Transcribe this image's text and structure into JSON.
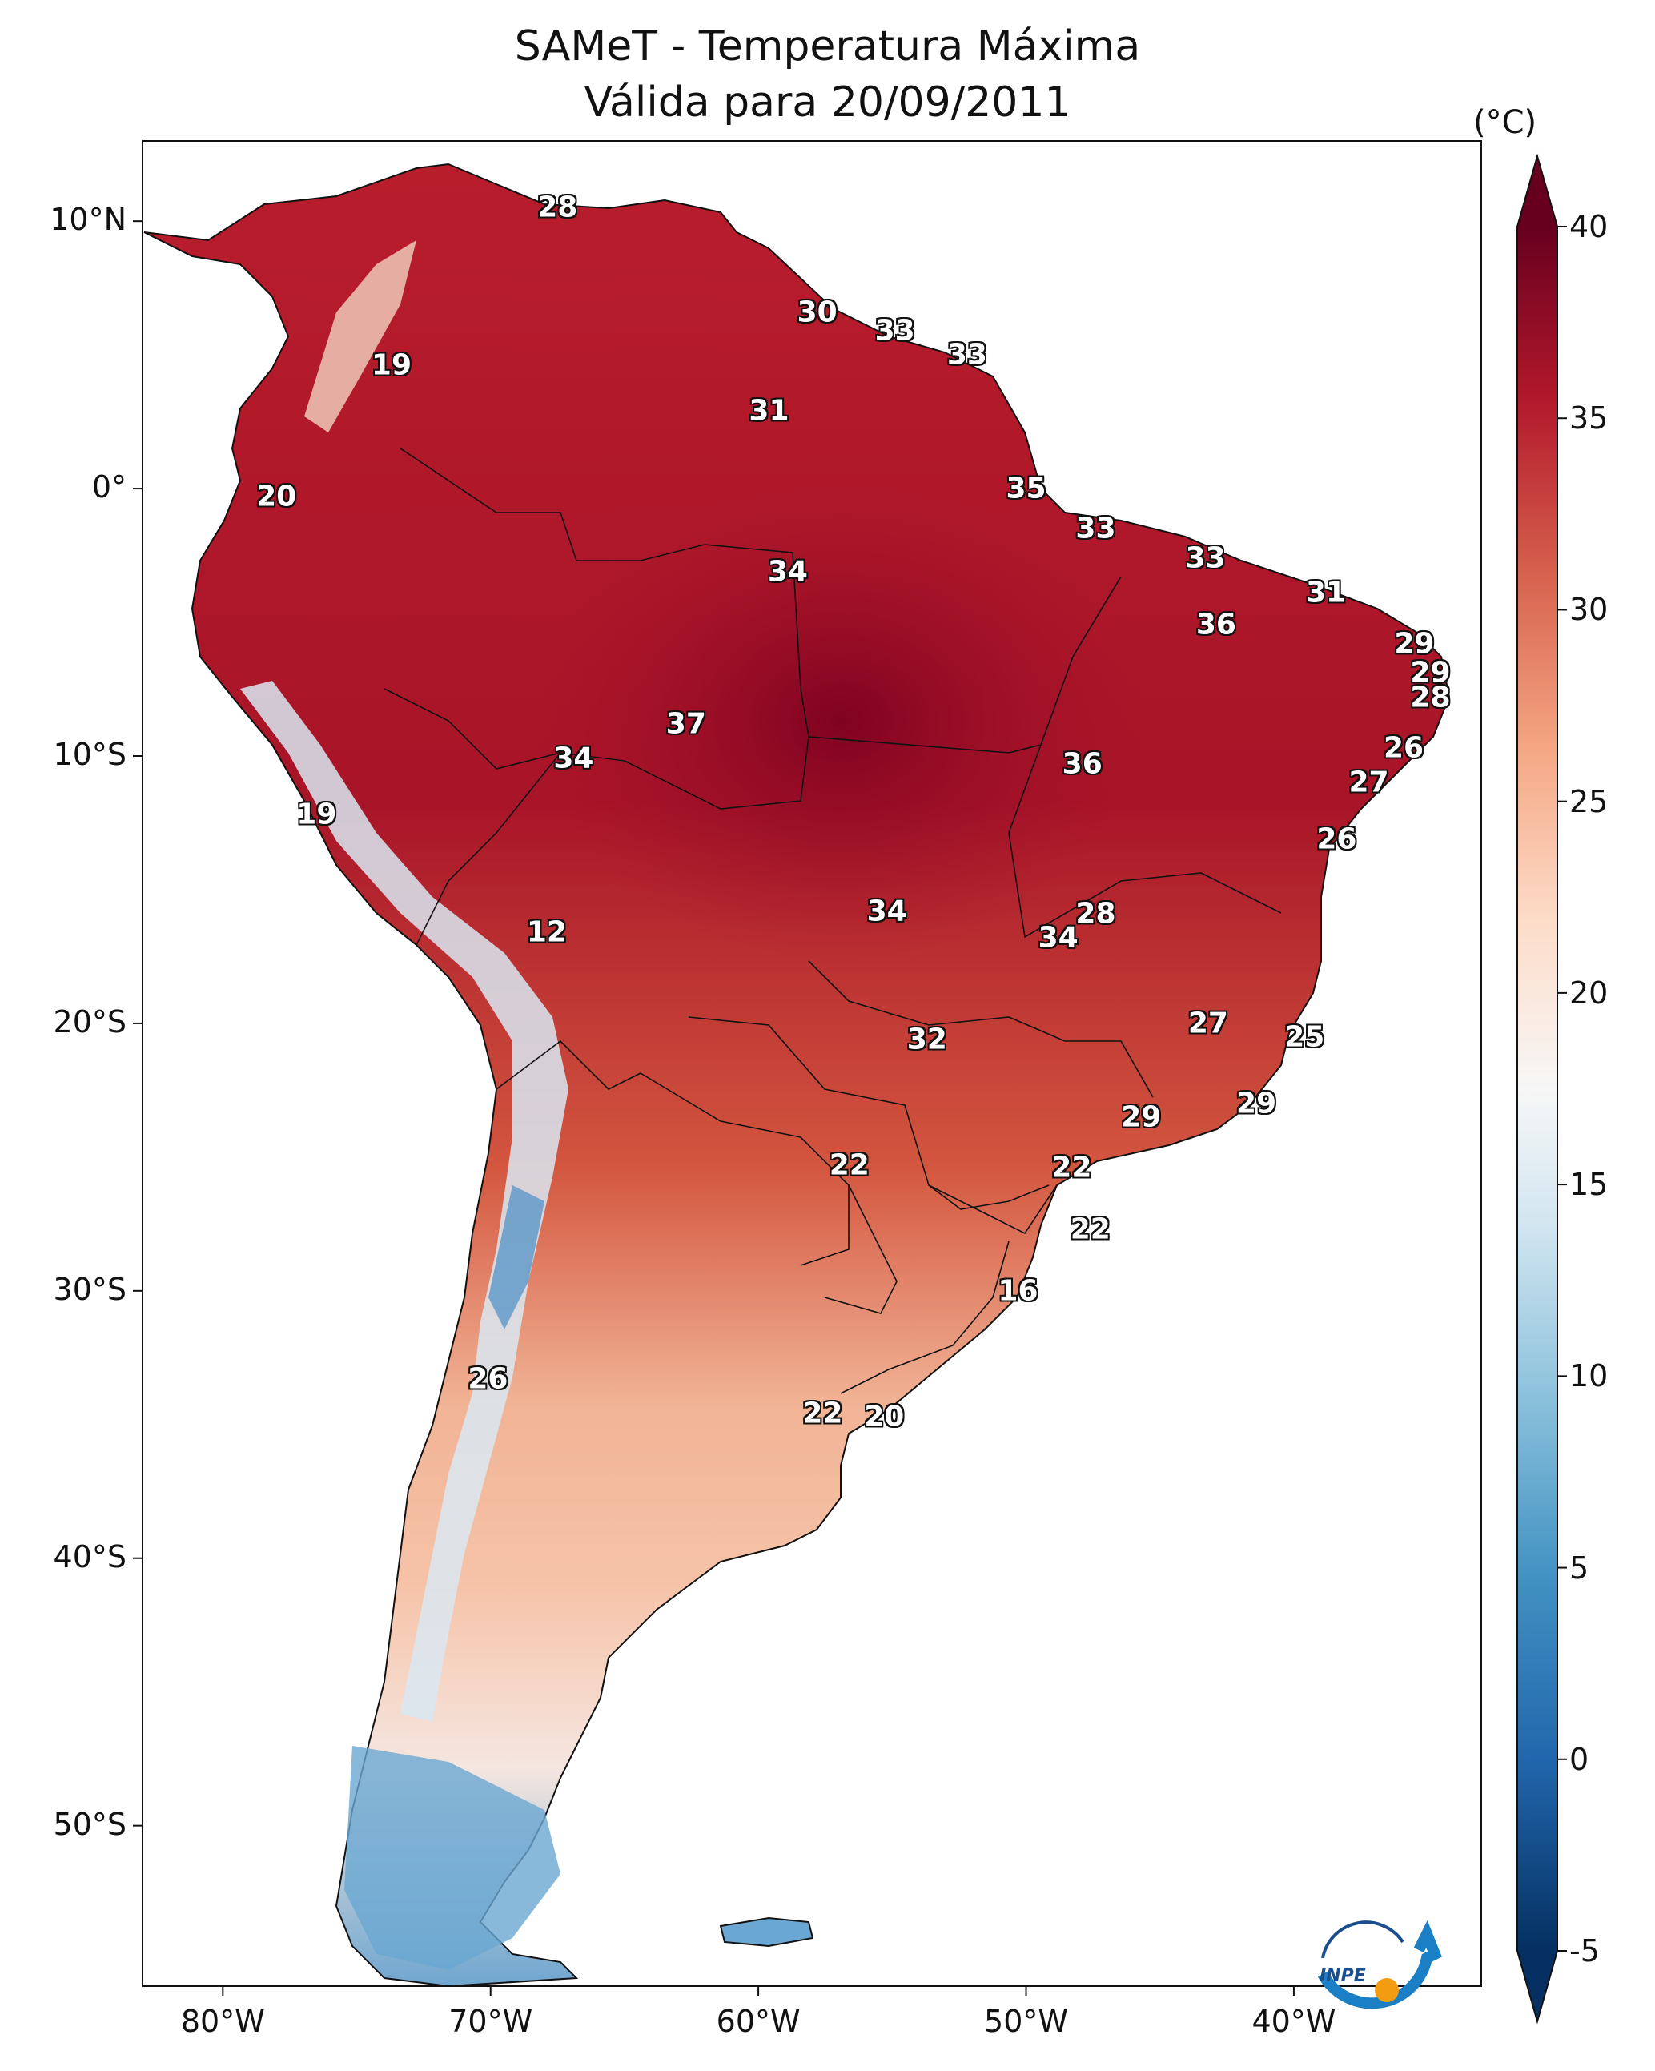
{
  "title": {
    "line1": "SAMeT - Temperatura Máxima",
    "line2": "Válida para 20/09/2011"
  },
  "map": {
    "lon_range": [
      -83,
      -33
    ],
    "lat_range": [
      -56,
      13
    ],
    "lat_ticks": [
      "10°N",
      "0°",
      "10°S",
      "20°S",
      "30°S",
      "40°S",
      "50°S"
    ],
    "lon_ticks": [
      "80°W",
      "70°W",
      "60°W",
      "50°W",
      "40°W"
    ],
    "logo_text": "INPE"
  },
  "colorbar": {
    "unit": "(°C)",
    "range": [
      -5,
      40
    ],
    "ticks": [
      "40",
      "35",
      "30",
      "25",
      "20",
      "15",
      "10",
      "5",
      "0",
      "-5"
    ],
    "colors": {
      "cold": "#053061",
      "cool": "#4393c3",
      "neutral": "#f7f7f7",
      "warm": "#f4a582",
      "hot": "#d6604d",
      "very_hot": "#67001f"
    }
  },
  "values": [
    {
      "label": "28",
      "lon": -67.5,
      "lat": 10.5
    },
    {
      "label": "30",
      "lon": -57.8,
      "lat": 6.6
    },
    {
      "label": "33",
      "lon": -54.9,
      "lat": 5.9
    },
    {
      "label": "33",
      "lon": -52.2,
      "lat": 5.0
    },
    {
      "label": "19",
      "lon": -73.7,
      "lat": 4.6
    },
    {
      "label": "31",
      "lon": -59.6,
      "lat": 2.9
    },
    {
      "label": "35",
      "lon": -50.0,
      "lat": 0.0
    },
    {
      "label": "20",
      "lon": -78.0,
      "lat": -0.3
    },
    {
      "label": "33",
      "lon": -47.4,
      "lat": -1.5
    },
    {
      "label": "33",
      "lon": -43.3,
      "lat": -2.6
    },
    {
      "label": "34",
      "lon": -58.9,
      "lat": -3.1
    },
    {
      "label": "31",
      "lon": -38.8,
      "lat": -3.9
    },
    {
      "label": "36",
      "lon": -42.9,
      "lat": -5.1
    },
    {
      "label": "29",
      "lon": -35.5,
      "lat": -5.8
    },
    {
      "label": "29",
      "lon": -34.9,
      "lat": -6.9
    },
    {
      "label": "28",
      "lon": -34.9,
      "lat": -7.8
    },
    {
      "label": "37",
      "lon": -62.7,
      "lat": -8.8
    },
    {
      "label": "26",
      "lon": -35.9,
      "lat": -9.7
    },
    {
      "label": "34",
      "lon": -66.9,
      "lat": -10.1
    },
    {
      "label": "36",
      "lon": -47.9,
      "lat": -10.3
    },
    {
      "label": "27",
      "lon": -37.2,
      "lat": -11.0
    },
    {
      "label": "19",
      "lon": -76.5,
      "lat": -12.2
    },
    {
      "label": "26",
      "lon": -38.4,
      "lat": -13.1
    },
    {
      "label": "28",
      "lon": -47.4,
      "lat": -15.9
    },
    {
      "label": "34",
      "lon": -55.2,
      "lat": -15.8
    },
    {
      "label": "34",
      "lon": -48.8,
      "lat": -16.8
    },
    {
      "label": "12",
      "lon": -67.9,
      "lat": -16.6
    },
    {
      "label": "27",
      "lon": -43.2,
      "lat": -20.0
    },
    {
      "label": "25",
      "lon": -39.6,
      "lat": -20.5
    },
    {
      "label": "32",
      "lon": -53.7,
      "lat": -20.6
    },
    {
      "label": "29",
      "lon": -41.4,
      "lat": -23.0
    },
    {
      "label": "29",
      "lon": -45.7,
      "lat": -23.5
    },
    {
      "label": "22",
      "lon": -56.6,
      "lat": -25.3
    },
    {
      "label": "22",
      "lon": -48.3,
      "lat": -25.4
    },
    {
      "label": "22",
      "lon": -47.6,
      "lat": -27.7
    },
    {
      "label": "16",
      "lon": -50.3,
      "lat": -30.0
    },
    {
      "label": "26",
      "lon": -70.1,
      "lat": -33.3
    },
    {
      "label": "22",
      "lon": -57.6,
      "lat": -34.6
    },
    {
      "label": "20",
      "lon": -55.3,
      "lat": -34.7
    }
  ]
}
